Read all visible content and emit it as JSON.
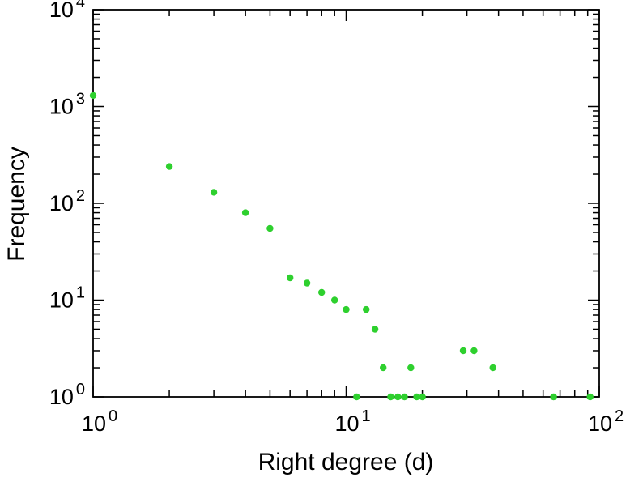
{
  "chart_data": {
    "type": "scatter",
    "title": "",
    "xlabel": "Right degree (d)",
    "ylabel": "Frequency",
    "x_scale": "log",
    "y_scale": "log",
    "xlim": [
      1,
      100
    ],
    "ylim": [
      1,
      10000
    ],
    "x_tick_exponents": [
      0,
      1,
      2
    ],
    "y_tick_exponents": [
      0,
      1,
      2,
      3,
      4
    ],
    "grid": "off",
    "legend": "none",
    "marker": "filled-circle",
    "marker_color": "#2ed02e",
    "frame_color": "#000000",
    "points": [
      [
        1,
        1300
      ],
      [
        2,
        240
      ],
      [
        3,
        130
      ],
      [
        4,
        80
      ],
      [
        5,
        55
      ],
      [
        6,
        17
      ],
      [
        7,
        15
      ],
      [
        8,
        12
      ],
      [
        9,
        10
      ],
      [
        10,
        8
      ],
      [
        11,
        1
      ],
      [
        12,
        8
      ],
      [
        13,
        5
      ],
      [
        14,
        2
      ],
      [
        15,
        1
      ],
      [
        16,
        1
      ],
      [
        17,
        1
      ],
      [
        18,
        2
      ],
      [
        19,
        1
      ],
      [
        20,
        1
      ],
      [
        29,
        3
      ],
      [
        32,
        3
      ],
      [
        38,
        2
      ],
      [
        66,
        1
      ],
      [
        92,
        1
      ]
    ]
  }
}
